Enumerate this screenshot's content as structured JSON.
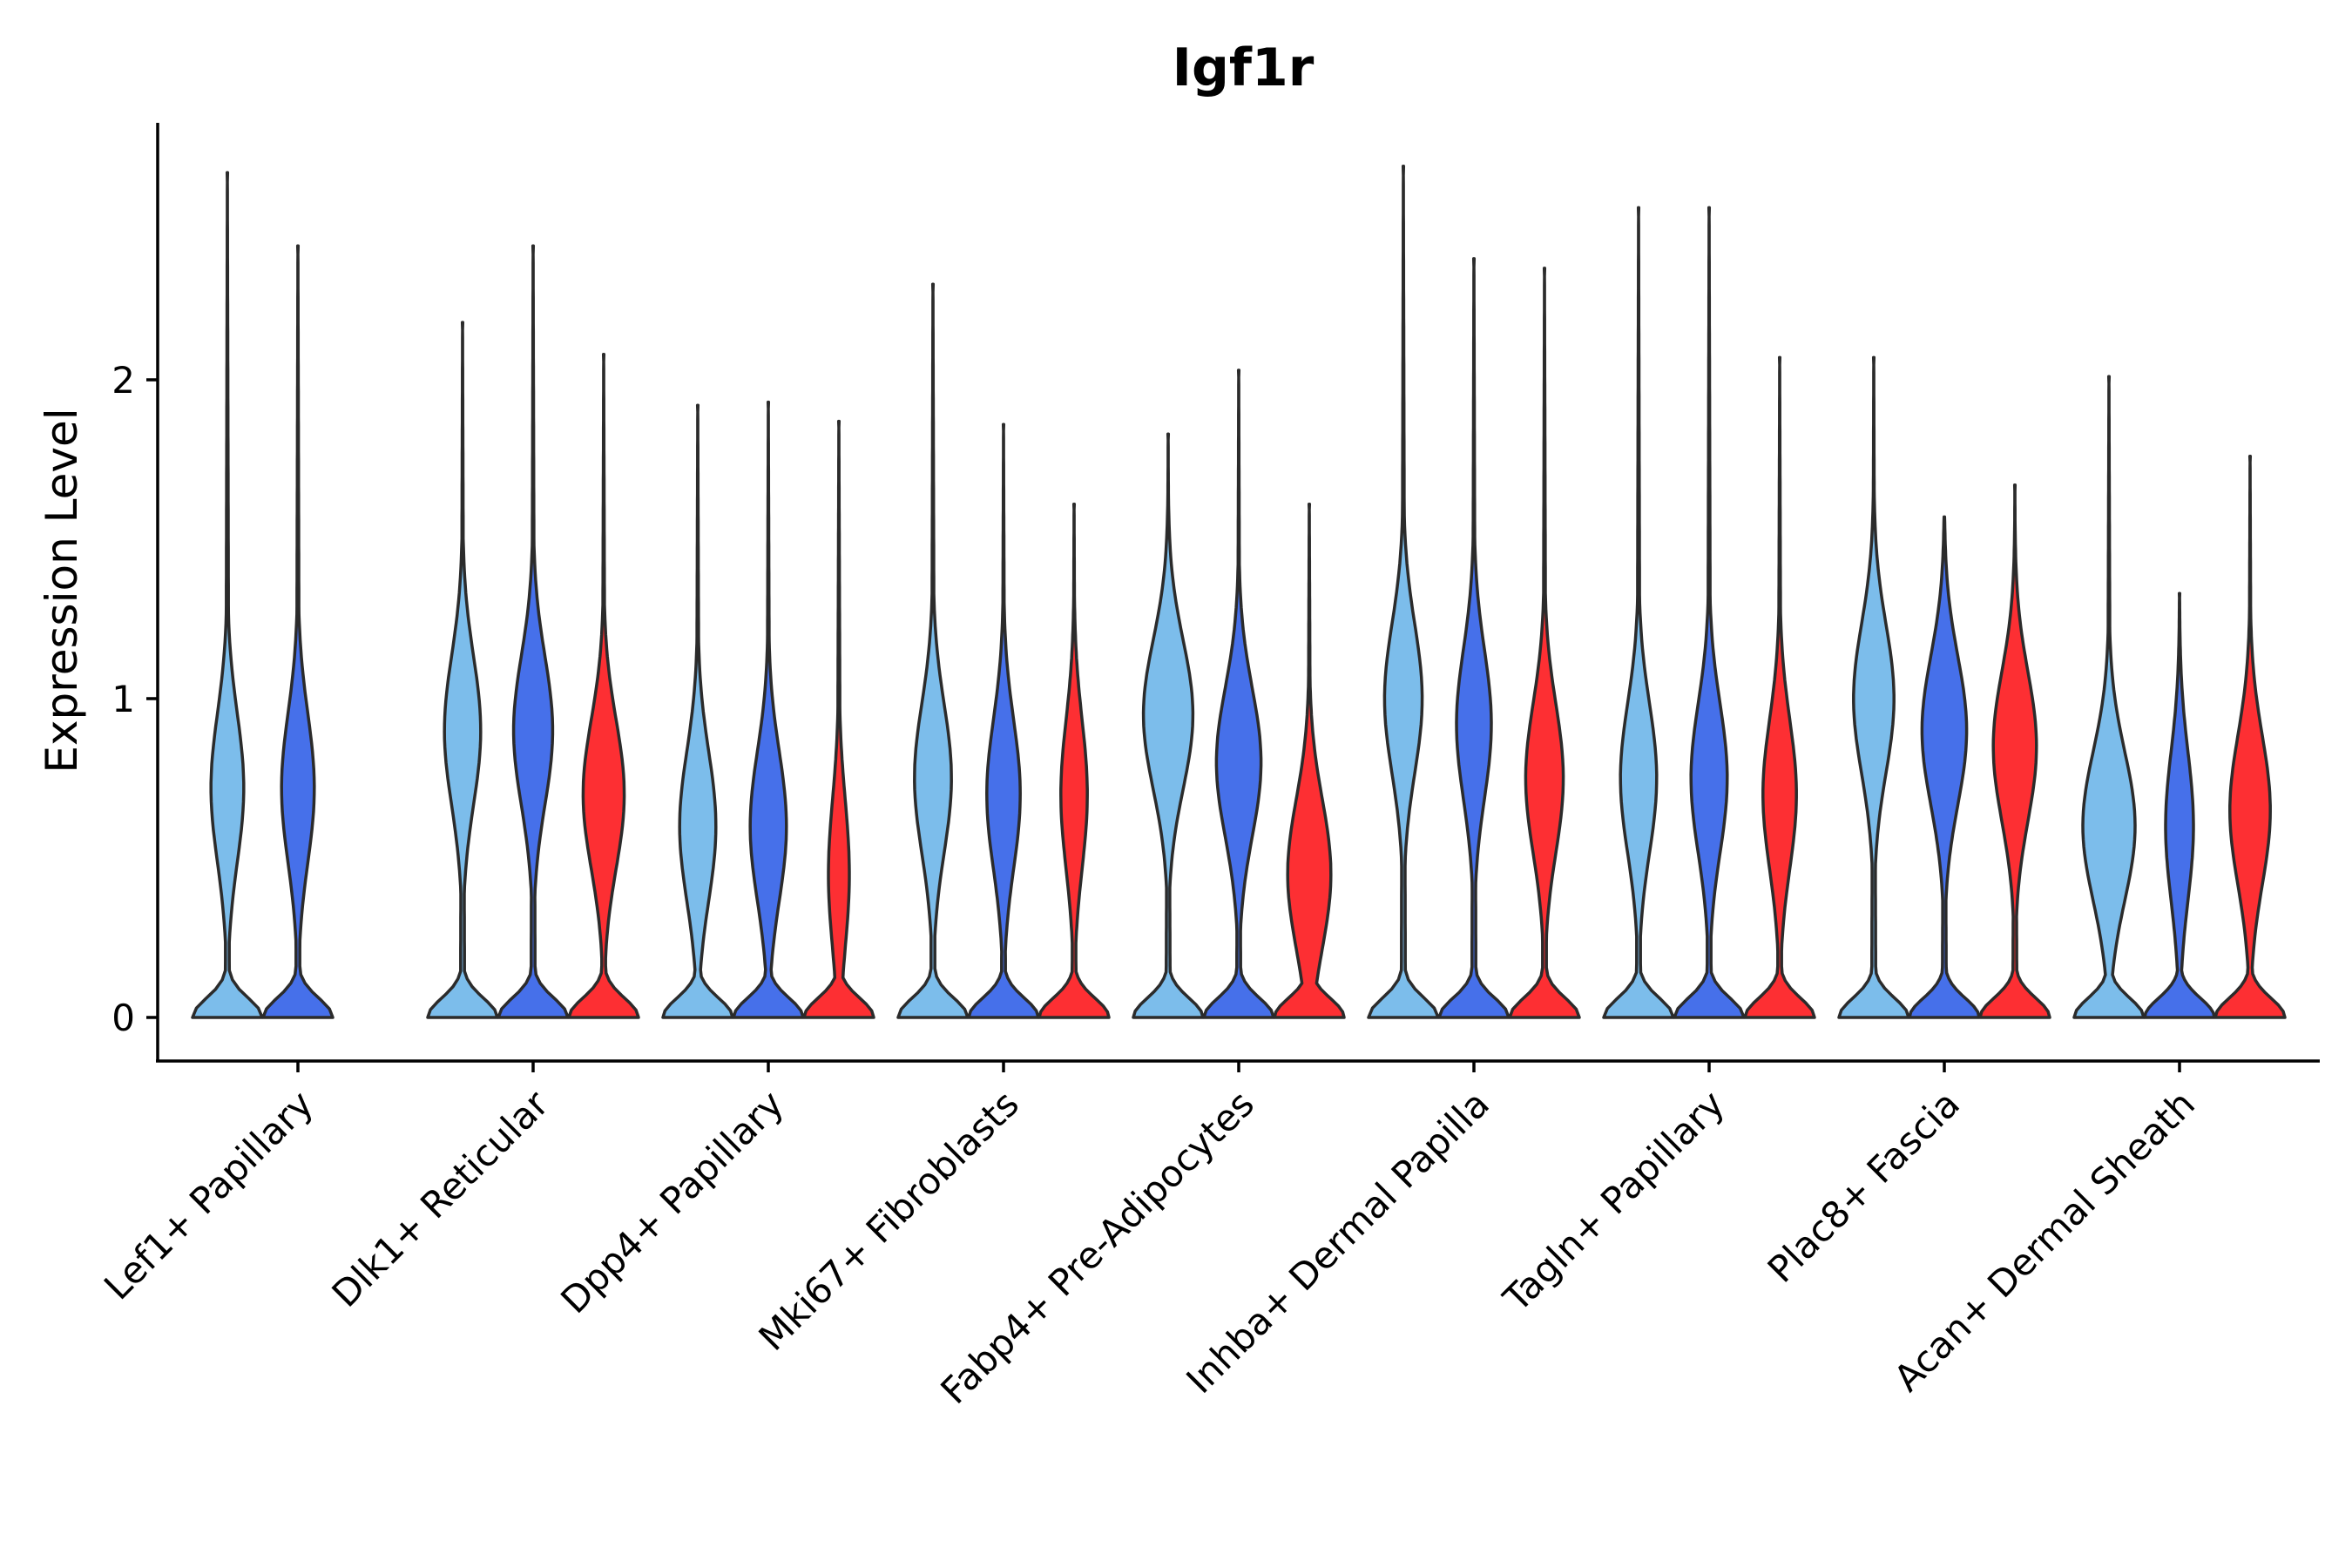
{
  "chart_data": {
    "type": "violin",
    "title": "Igf1r",
    "xlabel": "",
    "ylabel": "Expression Level",
    "ylim": [
      -0.13,
      2.8
    ],
    "yticks": [
      0,
      1,
      2
    ],
    "legend": "none",
    "grid": false,
    "colors": {
      "group1": "#7CBDEB",
      "group2": "#4670EA",
      "group3": "#FD2F33",
      "outline": "#2b2b2b"
    },
    "categories": [
      "Lef1+ Papillary",
      "Dlk1+ Reticular",
      "Dpp4+ Papillary",
      "Mki67+ Fibroblasts",
      "Fabp4+ Pre-Adipocytes",
      "Inhba+ Dermal Papilla",
      "Tagln+ Papillary",
      "Plac8+ Fascia",
      "Acan+ Dermal Sheath"
    ],
    "series": [
      {
        "name": "group1",
        "color": "#7CBDEB",
        "max": [
          2.65,
          2.18,
          1.92,
          2.3,
          1.83,
          2.67,
          2.54,
          2.07,
          2.01
        ],
        "mode": [
          0.72,
          0.9,
          0.6,
          0.75,
          0.95,
          1.0,
          0.75,
          1.0,
          0.6
        ],
        "peak_width": [
          0.47,
          0.52,
          0.52,
          0.53,
          0.71,
          0.54,
          0.52,
          0.58,
          0.75
        ]
      },
      {
        "name": "group2",
        "color": "#4670EA",
        "max": [
          2.42,
          2.42,
          1.93,
          1.86,
          2.03,
          2.38,
          2.54,
          1.57,
          1.33
        ],
        "mode": [
          0.72,
          0.9,
          0.6,
          0.7,
          0.8,
          0.92,
          0.75,
          0.9,
          0.6
        ],
        "peak_width": [
          0.47,
          0.56,
          0.52,
          0.48,
          0.64,
          0.5,
          0.52,
          0.64,
          0.4
        ]
      },
      {
        "name": "group3",
        "color": "#FD2F33",
        "max": [
          null,
          2.08,
          1.87,
          1.61,
          1.61,
          2.35,
          2.07,
          1.67,
          1.76
        ],
        "mode": [
          null,
          0.7,
          0.45,
          0.7,
          0.45,
          0.75,
          0.7,
          0.85,
          0.65
        ],
        "peak_width": [
          null,
          0.59,
          0.3,
          0.38,
          0.62,
          0.54,
          0.48,
          0.62,
          0.58
        ]
      }
    ]
  }
}
